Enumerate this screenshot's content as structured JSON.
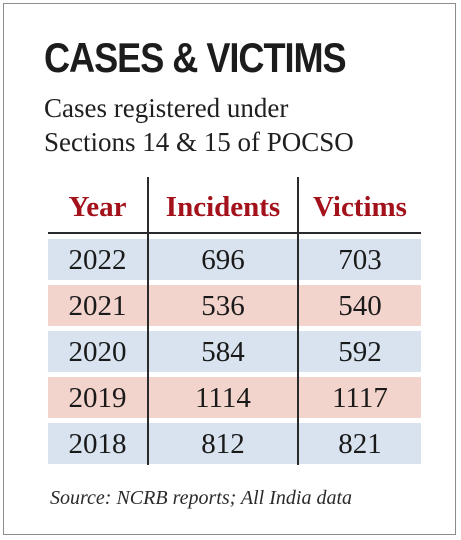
{
  "chart_data": {
    "type": "table",
    "title": "CASES & VICTIMS",
    "subtitle": [
      "Cases registered under",
      "Sections 14 & 15 of POCSO"
    ],
    "columns": [
      "Year",
      "Incidents",
      "Victims"
    ],
    "rows": [
      [
        "2022",
        "696",
        "703"
      ],
      [
        "2021",
        "536",
        "540"
      ],
      [
        "2020",
        "584",
        "592"
      ],
      [
        "2019",
        "1114",
        "1117"
      ],
      [
        "2018",
        "812",
        "821"
      ]
    ],
    "source": "Source: NCRB reports; All India data"
  },
  "colors": {
    "header_text": "#a3111b",
    "row_blue": "#d8e3ef",
    "row_pink": "#f3d4cc",
    "rule": "#2a2a2a",
    "frame": "#8c8c8c"
  }
}
